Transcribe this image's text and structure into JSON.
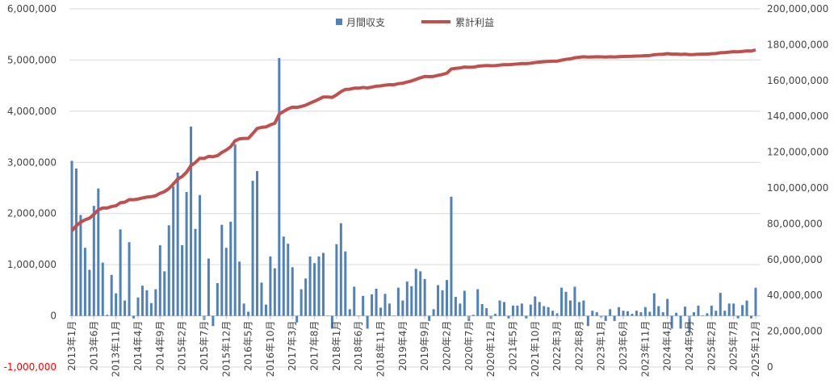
{
  "chart_data": {
    "type": "bar+line",
    "title": "",
    "legend": {
      "position": "top-center",
      "entries": [
        "月間収支",
        "累計利益"
      ]
    },
    "colors": {
      "bars": "#4f81bd",
      "line": "#c0504d",
      "negative_tick": "#ff0000",
      "grid": "#d9d9d9"
    },
    "x_start": {
      "year": 2013,
      "month": 1
    },
    "x_label_every": 5,
    "x_label_format": "{y}年{m}月",
    "left_axis": {
      "min": -1000000,
      "max": 6000000,
      "step": 1000000,
      "ticks": [
        "-1,000,000",
        "0",
        "1,000,000",
        "2,000,000",
        "3,000,000",
        "4,000,000",
        "5,000,000",
        "6,000,000"
      ]
    },
    "right_axis": {
      "min": 0,
      "max": 200000000,
      "step": 20000000,
      "ticks": [
        "0",
        "20,000,000",
        "40,000,000",
        "60,000,000",
        "80,000,000",
        "100,000,000",
        "120,000,000",
        "140,000,000",
        "160,000,000",
        "180,000,000",
        "200,000,000"
      ]
    },
    "series": [
      {
        "name": "月間収支",
        "type": "bar",
        "axis": "left",
        "unit": "million",
        "values": [
          3.03,
          2.88,
          1.97,
          1.33,
          0.9,
          2.15,
          2.49,
          1.04,
          0.02,
          0.8,
          0.44,
          1.69,
          0.3,
          1.44,
          -0.05,
          0.36,
          0.59,
          0.5,
          0.25,
          0.52,
          1.38,
          0.87,
          1.77,
          2.53,
          2.8,
          1.38,
          2.42,
          3.7,
          1.7,
          2.36,
          -0.08,
          1.12,
          -0.2,
          0.64,
          1.78,
          1.33,
          1.84,
          3.35,
          1.06,
          0.24,
          0.08,
          2.64,
          2.83,
          0.65,
          0.22,
          1.16,
          0.93,
          5.04,
          1.55,
          1.41,
          0.95,
          -0.13,
          0.52,
          0.73,
          1.16,
          1.03,
          1.16,
          1.23,
          0,
          -0.25,
          1.4,
          1.81,
          1.26,
          0.13,
          0.57,
          0,
          0.39,
          -0.25,
          0.42,
          0.53,
          0.16,
          0.43,
          0.24,
          0,
          0.55,
          0.3,
          0.67,
          0.58,
          0.92,
          0.87,
          0.72,
          -0.1,
          0.13,
          0.6,
          0.5,
          0.7,
          2.33,
          0.37,
          0.24,
          0.49,
          -0.1,
          0.02,
          0.52,
          0.23,
          0.15,
          -0.06,
          0.04,
          0.3,
          0.27,
          -0.05,
          0.2,
          0.2,
          0.24,
          -0.05,
          0.22,
          0.38,
          0.27,
          0.19,
          0.17,
          0.1,
          0.05,
          0.55,
          0.47,
          0.3,
          0.57,
          0.27,
          0.3,
          -0.2,
          0.1,
          0.07,
          -0.03,
          -0.1,
          0.13,
          -0.1,
          0.17,
          0.1,
          0.09,
          0.04,
          0.1,
          0.07,
          0.17,
          0.08,
          0.44,
          0.19,
          0.07,
          0.33,
          -0.25,
          0.06,
          -0.25,
          0.18,
          -0.3,
          0.07,
          0.2,
          0.01,
          0.05,
          0.2,
          0.1,
          0.45,
          0.1,
          0.24,
          0.24,
          -0.05,
          0.21,
          0.3,
          -0.05,
          0.55
        ]
      },
      {
        "name": "累計利益",
        "type": "line",
        "axis": "right",
        "base": 73000000,
        "note": "cumulative = base + running sum of monthly values"
      }
    ]
  }
}
